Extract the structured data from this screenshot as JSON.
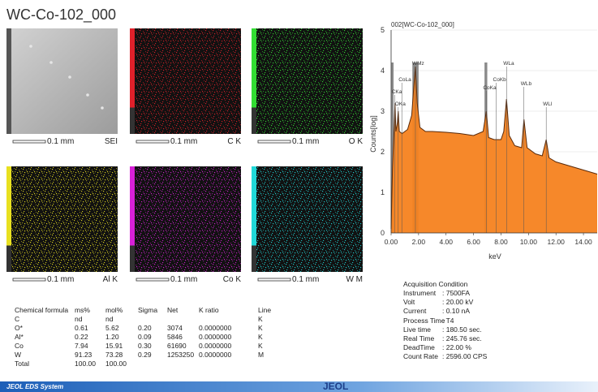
{
  "title": "WC-Co-102_000",
  "maps": [
    {
      "name": "SEI",
      "scale": "0.1 mm",
      "color": "#e6e6e6"
    },
    {
      "name": "C K",
      "scale": "0.1 mm",
      "color": "#e0202a"
    },
    {
      "name": "O K",
      "scale": "0.1 mm",
      "color": "#33dd33"
    },
    {
      "name": "Al K",
      "scale": "0.1 mm",
      "color": "#e8e020"
    },
    {
      "name": "Co K",
      "scale": "0.1 mm",
      "color": "#d820d8"
    },
    {
      "name": "W M",
      "scale": "0.1 mm",
      "color": "#20d8d8"
    }
  ],
  "chart_data": {
    "type": "area",
    "title": "002[WC-Co-102_000]",
    "x_label": "keV",
    "y_label": "Counts[log]",
    "color": "#f5821f",
    "line_color": "#5a2a0a",
    "x": [
      0,
      0.1,
      0.2,
      0.28,
      0.35,
      0.45,
      0.52,
      0.6,
      0.8,
      1.0,
      1.2,
      1.5,
      1.65,
      1.77,
      1.9,
      2.1,
      2.5,
      3.0,
      4.0,
      5.0,
      6.0,
      6.7,
      6.93,
      7.1,
      7.5,
      8.0,
      8.2,
      8.4,
      8.6,
      9.0,
      9.5,
      9.67,
      9.9,
      10.5,
      11.0,
      11.29,
      11.5,
      12.0,
      13.0,
      14.0,
      15.0
    ],
    "values": [
      0.1,
      1.6,
      2.4,
      3.2,
      2.5,
      2.7,
      3.0,
      2.5,
      2.45,
      2.5,
      2.55,
      2.9,
      3.6,
      4.1,
      3.2,
      2.6,
      2.5,
      2.5,
      2.48,
      2.45,
      2.4,
      2.5,
      3.0,
      2.35,
      2.3,
      2.3,
      2.5,
      3.3,
      2.4,
      2.15,
      2.1,
      2.8,
      2.1,
      1.95,
      1.9,
      2.3,
      1.85,
      1.75,
      1.65,
      1.55,
      1.45
    ],
    "xlim": [
      0,
      15
    ],
    "ylim": [
      0,
      5
    ],
    "xticks": [
      {
        "value": 0,
        "label": "0.00"
      },
      {
        "value": 2,
        "label": "2.00"
      },
      {
        "value": 4,
        "label": "4.00"
      },
      {
        "value": 6,
        "label": "6.00"
      },
      {
        "value": 8,
        "label": "8.00"
      },
      {
        "value": 10,
        "label": "10.00"
      },
      {
        "value": 12,
        "label": "12.00"
      },
      {
        "value": 14,
        "label": "14.00"
      }
    ],
    "yticks": [
      0,
      1,
      2,
      3,
      4,
      5
    ],
    "peaks": [
      {
        "label": "CKa",
        "x": 0.28,
        "y": 3.4
      },
      {
        "label": "OKa",
        "x": 0.52,
        "y": 3.1
      },
      {
        "label": "WMz",
        "x": 1.77,
        "y": 4.1
      },
      {
        "label": "CoLa",
        "x": 0.78,
        "y": 3.7
      },
      {
        "label": "CoKa",
        "x": 6.93,
        "y": 3.5
      },
      {
        "label": "CoKb",
        "x": 7.65,
        "y": 3.7
      },
      {
        "label": "WLa",
        "x": 8.4,
        "y": 4.1
      },
      {
        "label": "WLb",
        "x": 9.67,
        "y": 3.6
      },
      {
        "label": "WLl",
        "x": 11.29,
        "y": 3.1
      }
    ]
  },
  "table": {
    "header": [
      "Chemical formula",
      "ms%",
      "mol%",
      "Sigma",
      "Net",
      "K ratio",
      "Line"
    ],
    "rows": [
      [
        "C",
        "nd",
        "nd",
        "",
        "",
        "",
        "K"
      ],
      [
        "O*",
        "0.61",
        "5.62",
        "0.20",
        "3074",
        "0.0000000",
        "K"
      ],
      [
        "Al*",
        "0.22",
        "1.20",
        "0.09",
        "5846",
        "0.0000000",
        "K"
      ],
      [
        "Co",
        "7.94",
        "15.91",
        "0.30",
        "61690",
        "0.0000000",
        "K"
      ],
      [
        "W",
        "91.23",
        "73.28",
        "0.29",
        "1253250",
        "0.0000000",
        "M"
      ],
      [
        "Total",
        "100.00",
        "100.00",
        "",
        "",
        "",
        ""
      ]
    ]
  },
  "acquisition": {
    "title": "Acquisition Condition",
    "items": [
      [
        "Instrument",
        ": 7500FA"
      ],
      [
        "Volt",
        ": 20.00 kV"
      ],
      [
        "Current",
        ": 0.10 nA"
      ],
      [
        "Process Time",
        ": T4"
      ],
      [
        "Live time",
        ": 180.50 sec."
      ],
      [
        "Real Time",
        ": 245.76 sec."
      ],
      [
        "DeadTime",
        ": 22.00 %"
      ],
      [
        "Count Rate",
        ": 2596.00 CPS"
      ]
    ]
  },
  "footer": {
    "system": "JEOL EDS System",
    "logo": "JEOL"
  }
}
